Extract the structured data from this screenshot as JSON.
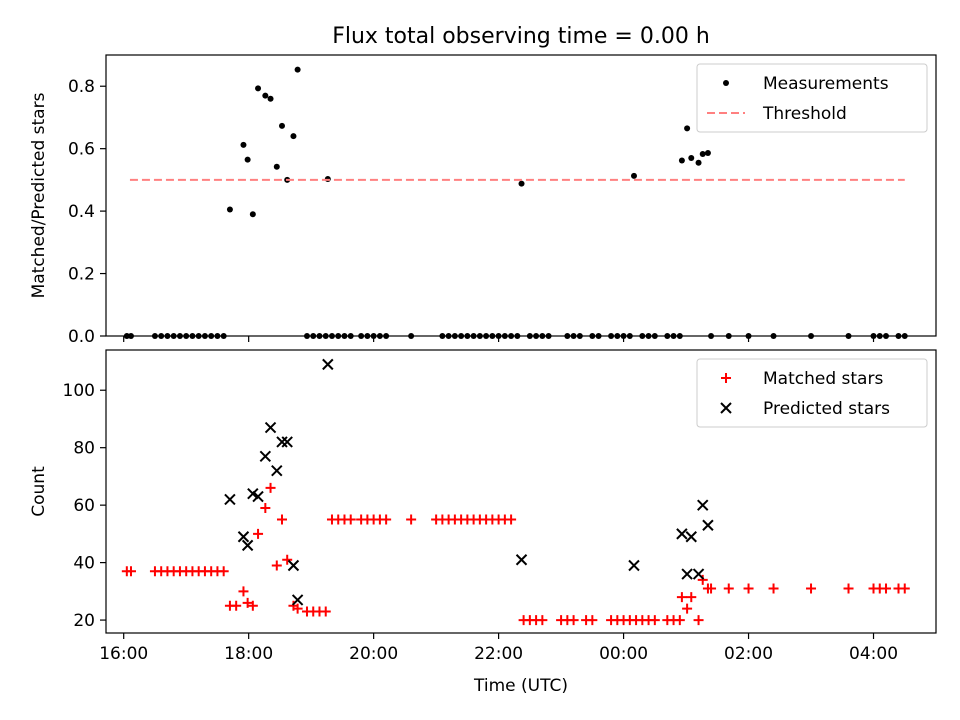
{
  "title": "Flux total observing time = 0.00 h",
  "chart_data": [
    {
      "type": "scatter",
      "ylabel": "Matched/Predicted stars",
      "xlabel": "",
      "x_axis": "time",
      "xlim": [
        "15:43",
        "05:00"
      ],
      "ylim": [
        0,
        0.9
      ],
      "x_ticks": [
        "16:00",
        "18:00",
        "20:00",
        "22:00",
        "00:00",
        "02:00",
        "04:00"
      ],
      "y_ticks": [
        "0.0",
        "0.2",
        "0.4",
        "0.6",
        "0.8"
      ],
      "legend_position": "upper right",
      "series": [
        {
          "name": "Measurements",
          "marker": "dot",
          "color": "#000000",
          "points": [
            [
              "16:03",
              0
            ],
            [
              "16:07",
              0
            ],
            [
              "16:30",
              0
            ],
            [
              "16:36",
              0
            ],
            [
              "16:42",
              0
            ],
            [
              "16:48",
              0
            ],
            [
              "16:54",
              0
            ],
            [
              "17:00",
              0
            ],
            [
              "17:06",
              0
            ],
            [
              "17:12",
              0
            ],
            [
              "17:18",
              0
            ],
            [
              "17:24",
              0
            ],
            [
              "17:30",
              0
            ],
            [
              "17:36",
              0
            ],
            [
              "17:42",
              0.405
            ],
            [
              "17:55",
              0.612
            ],
            [
              "17:59",
              0.565
            ],
            [
              "18:04",
              0.39
            ],
            [
              "18:09",
              0.793
            ],
            [
              "18:16",
              0.77
            ],
            [
              "18:21",
              0.76
            ],
            [
              "18:27",
              0.542
            ],
            [
              "18:32",
              0.673
            ],
            [
              "18:37",
              0.5
            ],
            [
              "18:43",
              0.64
            ],
            [
              "18:47",
              0.853
            ],
            [
              "18:56",
              0
            ],
            [
              "19:02",
              0
            ],
            [
              "19:08",
              0
            ],
            [
              "19:14",
              0
            ],
            [
              "19:16",
              0.503
            ],
            [
              "19:20",
              0
            ],
            [
              "19:26",
              0
            ],
            [
              "19:32",
              0
            ],
            [
              "19:38",
              0
            ],
            [
              "19:48",
              0
            ],
            [
              "19:54",
              0
            ],
            [
              "20:00",
              0
            ],
            [
              "20:06",
              0
            ],
            [
              "20:12",
              0
            ],
            [
              "20:36",
              0
            ],
            [
              "21:06",
              0
            ],
            [
              "21:12",
              0
            ],
            [
              "21:18",
              0
            ],
            [
              "21:24",
              0
            ],
            [
              "21:30",
              0
            ],
            [
              "21:36",
              0
            ],
            [
              "21:42",
              0
            ],
            [
              "21:48",
              0
            ],
            [
              "21:54",
              0
            ],
            [
              "22:00",
              0
            ],
            [
              "22:06",
              0
            ],
            [
              "22:12",
              0
            ],
            [
              "22:18",
              0
            ],
            [
              "22:22",
              0.488
            ],
            [
              "22:30",
              0
            ],
            [
              "22:36",
              0
            ],
            [
              "22:42",
              0
            ],
            [
              "22:48",
              0
            ],
            [
              "23:06",
              0
            ],
            [
              "23:12",
              0
            ],
            [
              "23:18",
              0
            ],
            [
              "23:30",
              0
            ],
            [
              "23:36",
              0
            ],
            [
              "23:48",
              0
            ],
            [
              "23:54",
              0
            ],
            [
              "00:00",
              0
            ],
            [
              "00:06",
              0
            ],
            [
              "00:10",
              0.513
            ],
            [
              "00:18",
              0
            ],
            [
              "00:24",
              0
            ],
            [
              "00:30",
              0
            ],
            [
              "00:42",
              0
            ],
            [
              "00:48",
              0
            ],
            [
              "00:54",
              0
            ],
            [
              "00:56",
              0.562
            ],
            [
              "01:01",
              0.665
            ],
            [
              "01:05",
              0.57
            ],
            [
              "01:12",
              0.555
            ],
            [
              "01:16",
              0.583
            ],
            [
              "01:21",
              0.586
            ],
            [
              "01:24",
              0
            ],
            [
              "01:41",
              0
            ],
            [
              "02:00",
              0
            ],
            [
              "02:24",
              0
            ],
            [
              "03:00",
              0
            ],
            [
              "03:36",
              0
            ],
            [
              "04:00",
              0
            ],
            [
              "04:06",
              0
            ],
            [
              "04:12",
              0
            ],
            [
              "04:24",
              0
            ],
            [
              "04:30",
              0
            ]
          ]
        },
        {
          "name": "Threshold",
          "line_style": "dashed",
          "color": "#ff8080",
          "points": [
            [
              "16:06",
              0.5
            ],
            [
              "04:30",
              0.5
            ]
          ]
        }
      ]
    },
    {
      "type": "scatter",
      "ylabel": "Count",
      "xlabel": "Time (UTC)",
      "x_axis": "time",
      "xlim": [
        "15:43",
        "05:00"
      ],
      "ylim": [
        15.5,
        114
      ],
      "x_ticks": [
        "16:00",
        "18:00",
        "20:00",
        "22:00",
        "00:00",
        "02:00",
        "04:00"
      ],
      "y_ticks": [
        "20",
        "40",
        "60",
        "80",
        "100"
      ],
      "legend_position": "upper right",
      "series": [
        {
          "name": "Matched stars",
          "marker": "plus",
          "color": "#ff0000",
          "points": [
            [
              "16:03",
              37
            ],
            [
              "16:07",
              37
            ],
            [
              "16:30",
              37
            ],
            [
              "16:36",
              37
            ],
            [
              "16:42",
              37
            ],
            [
              "16:48",
              37
            ],
            [
              "16:54",
              37
            ],
            [
              "17:00",
              37
            ],
            [
              "17:06",
              37
            ],
            [
              "17:12",
              37
            ],
            [
              "17:18",
              37
            ],
            [
              "17:24",
              37
            ],
            [
              "17:30",
              37
            ],
            [
              "17:36",
              37
            ],
            [
              "17:42",
              25
            ],
            [
              "17:48",
              25
            ],
            [
              "17:55",
              30
            ],
            [
              "17:59",
              26
            ],
            [
              "18:04",
              25
            ],
            [
              "18:09",
              50
            ],
            [
              "18:16",
              59
            ],
            [
              "18:21",
              66
            ],
            [
              "18:27",
              39
            ],
            [
              "18:32",
              55
            ],
            [
              "18:37",
              41
            ],
            [
              "18:43",
              25
            ],
            [
              "18:47",
              24
            ],
            [
              "18:56",
              23
            ],
            [
              "19:02",
              23
            ],
            [
              "19:08",
              23
            ],
            [
              "19:14",
              23
            ],
            [
              "19:20",
              55
            ],
            [
              "19:26",
              55
            ],
            [
              "19:32",
              55
            ],
            [
              "19:38",
              55
            ],
            [
              "19:48",
              55
            ],
            [
              "19:54",
              55
            ],
            [
              "20:00",
              55
            ],
            [
              "20:06",
              55
            ],
            [
              "20:12",
              55
            ],
            [
              "20:36",
              55
            ],
            [
              "21:00",
              55
            ],
            [
              "21:06",
              55
            ],
            [
              "21:12",
              55
            ],
            [
              "21:18",
              55
            ],
            [
              "21:24",
              55
            ],
            [
              "21:30",
              55
            ],
            [
              "21:36",
              55
            ],
            [
              "21:42",
              55
            ],
            [
              "21:48",
              55
            ],
            [
              "21:54",
              55
            ],
            [
              "22:00",
              55
            ],
            [
              "22:06",
              55
            ],
            [
              "22:12",
              55
            ],
            [
              "22:24",
              20
            ],
            [
              "22:30",
              20
            ],
            [
              "22:36",
              20
            ],
            [
              "22:42",
              20
            ],
            [
              "23:00",
              20
            ],
            [
              "23:06",
              20
            ],
            [
              "23:12",
              20
            ],
            [
              "23:24",
              20
            ],
            [
              "23:30",
              20
            ],
            [
              "23:48",
              20
            ],
            [
              "23:54",
              20
            ],
            [
              "00:00",
              20
            ],
            [
              "00:06",
              20
            ],
            [
              "00:12",
              20
            ],
            [
              "00:18",
              20
            ],
            [
              "00:24",
              20
            ],
            [
              "00:30",
              20
            ],
            [
              "00:42",
              20
            ],
            [
              "00:48",
              20
            ],
            [
              "00:54",
              20
            ],
            [
              "00:56",
              28
            ],
            [
              "01:01",
              24
            ],
            [
              "01:05",
              28
            ],
            [
              "01:12",
              20
            ],
            [
              "01:16",
              34
            ],
            [
              "01:21",
              31
            ],
            [
              "01:24",
              31
            ],
            [
              "01:41",
              31
            ],
            [
              "02:00",
              31
            ],
            [
              "02:24",
              31
            ],
            [
              "03:00",
              31
            ],
            [
              "03:36",
              31
            ],
            [
              "04:00",
              31
            ],
            [
              "04:06",
              31
            ],
            [
              "04:12",
              31
            ],
            [
              "04:24",
              31
            ],
            [
              "04:30",
              31
            ]
          ]
        },
        {
          "name": "Predicted stars",
          "marker": "x",
          "color": "#000000",
          "points": [
            [
              "17:42",
              62
            ],
            [
              "17:55",
              49
            ],
            [
              "17:59",
              46
            ],
            [
              "18:04",
              64
            ],
            [
              "18:09",
              63
            ],
            [
              "18:16",
              77
            ],
            [
              "18:21",
              87
            ],
            [
              "18:27",
              72
            ],
            [
              "18:32",
              82
            ],
            [
              "18:37",
              82
            ],
            [
              "18:43",
              39
            ],
            [
              "18:47",
              27
            ],
            [
              "19:16",
              109
            ],
            [
              "22:22",
              41
            ],
            [
              "00:10",
              39
            ],
            [
              "00:56",
              50
            ],
            [
              "01:01",
              36
            ],
            [
              "01:05",
              49
            ],
            [
              "01:12",
              36
            ],
            [
              "01:16",
              60
            ],
            [
              "01:21",
              53
            ]
          ]
        }
      ]
    }
  ]
}
